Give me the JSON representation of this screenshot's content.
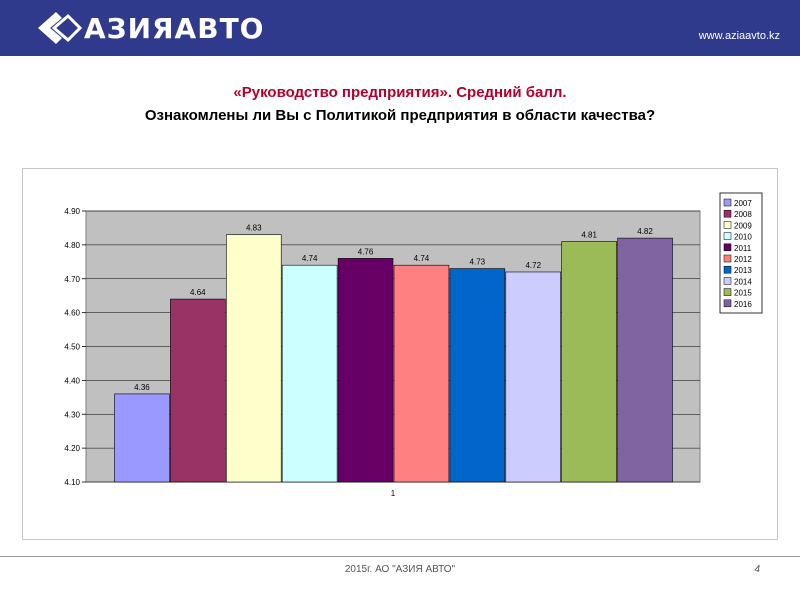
{
  "header": {
    "logo_text": "АЗИЯАВТО",
    "site": "www.aziaavto.kz"
  },
  "titles": {
    "line1": "«Руководство предприятия». Средний балл.",
    "line2": "Ознакомлены ли Вы с Политикой предприятия в области качества?"
  },
  "chart_data": {
    "type": "bar",
    "categories": [
      "1"
    ],
    "ylim": [
      4.1,
      4.9
    ],
    "yticks": [
      "4.10",
      "4.20",
      "4.30",
      "4.40",
      "4.50",
      "4.60",
      "4.70",
      "4.80",
      "4.90"
    ],
    "grid": true,
    "legend_position": "right",
    "series": [
      {
        "name": "2007",
        "value": 4.36,
        "label": "4.36",
        "color": "#9999ff"
      },
      {
        "name": "2008",
        "value": 4.64,
        "label": "4.64",
        "color": "#993366"
      },
      {
        "name": "2009",
        "value": 4.83,
        "label": "4.83",
        "color": "#ffffcc"
      },
      {
        "name": "2010",
        "value": 4.74,
        "label": "4.74",
        "color": "#ccffff"
      },
      {
        "name": "2011",
        "value": 4.76,
        "label": "4.76",
        "color": "#660066"
      },
      {
        "name": "2012",
        "value": 4.74,
        "label": "4.74",
        "color": "#ff8080"
      },
      {
        "name": "2013",
        "value": 4.73,
        "label": "4.73",
        "color": "#0066cc"
      },
      {
        "name": "2014",
        "value": 4.72,
        "label": "4.72",
        "color": "#ccccff"
      },
      {
        "name": "2015",
        "value": 4.81,
        "label": "4.81",
        "color": "#9bbb59"
      },
      {
        "name": "2016",
        "value": 4.82,
        "label": "4.82",
        "color": "#8064a2"
      }
    ]
  },
  "footer": {
    "text": "2015г. АО \"АЗИЯ АВТО\"",
    "page": "4"
  }
}
